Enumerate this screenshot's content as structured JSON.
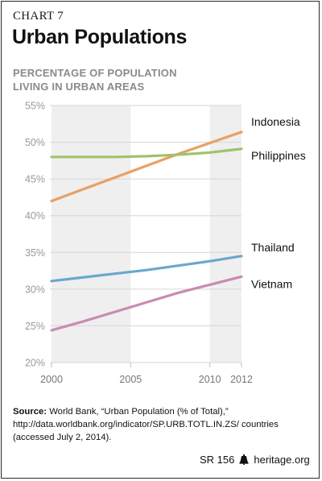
{
  "header": {
    "kicker": "CHART 7",
    "title": "Urban Populations"
  },
  "chart_data": {
    "type": "line",
    "title": "Urban Populations",
    "ylabel": "PERCENTAGE OF POPULATION LIVING IN URBAN AREAS",
    "ylabel_lines": [
      "PERCENTAGE OF POPULATION",
      "LIVING IN URBAN AREAS"
    ],
    "xlabel": "",
    "xlim": [
      2000,
      2012
    ],
    "ylim": [
      20,
      55
    ],
    "x_ticks": [
      2000,
      2005,
      2010,
      2012
    ],
    "y_ticks": [
      20,
      25,
      30,
      35,
      40,
      45,
      50,
      55
    ],
    "y_tick_labels": [
      "20%",
      "25%",
      "30%",
      "35%",
      "40%",
      "45%",
      "50%",
      "55%"
    ],
    "shaded_bands": [
      [
        2000,
        2005
      ],
      [
        2010,
        2012
      ]
    ],
    "grid": true,
    "legend": "inline-right",
    "series": [
      {
        "name": "Indonesia",
        "color": "#e8a066",
        "x": [
          2000,
          2002,
          2004,
          2006,
          2008,
          2010,
          2012
        ],
        "y": [
          42.0,
          43.6,
          45.2,
          46.8,
          48.4,
          49.9,
          51.4
        ]
      },
      {
        "name": "Philippines",
        "color": "#9dc46a",
        "x": [
          2000,
          2002,
          2004,
          2006,
          2008,
          2010,
          2012
        ],
        "y": [
          48.0,
          48.0,
          48.0,
          48.1,
          48.3,
          48.6,
          49.1
        ]
      },
      {
        "name": "Thailand",
        "color": "#6aa8cc",
        "x": [
          2000,
          2002,
          2004,
          2006,
          2008,
          2010,
          2012
        ],
        "y": [
          31.1,
          31.6,
          32.1,
          32.6,
          33.2,
          33.8,
          34.5
        ]
      },
      {
        "name": "Vietnam",
        "color": "#c98bb2",
        "x": [
          2000,
          2002,
          2004,
          2006,
          2008,
          2010,
          2012
        ],
        "y": [
          24.4,
          25.6,
          26.9,
          28.2,
          29.5,
          30.6,
          31.7
        ]
      }
    ]
  },
  "source": {
    "label": "Source:",
    "text": " World Bank, “Urban Population (% of Total),” http://data.worldbank.org/indicator/SP.URB.TOTL.IN.ZS/ countries (accessed July 2, 2014)."
  },
  "footer": {
    "report": "SR 156",
    "site": "heritage.org"
  }
}
